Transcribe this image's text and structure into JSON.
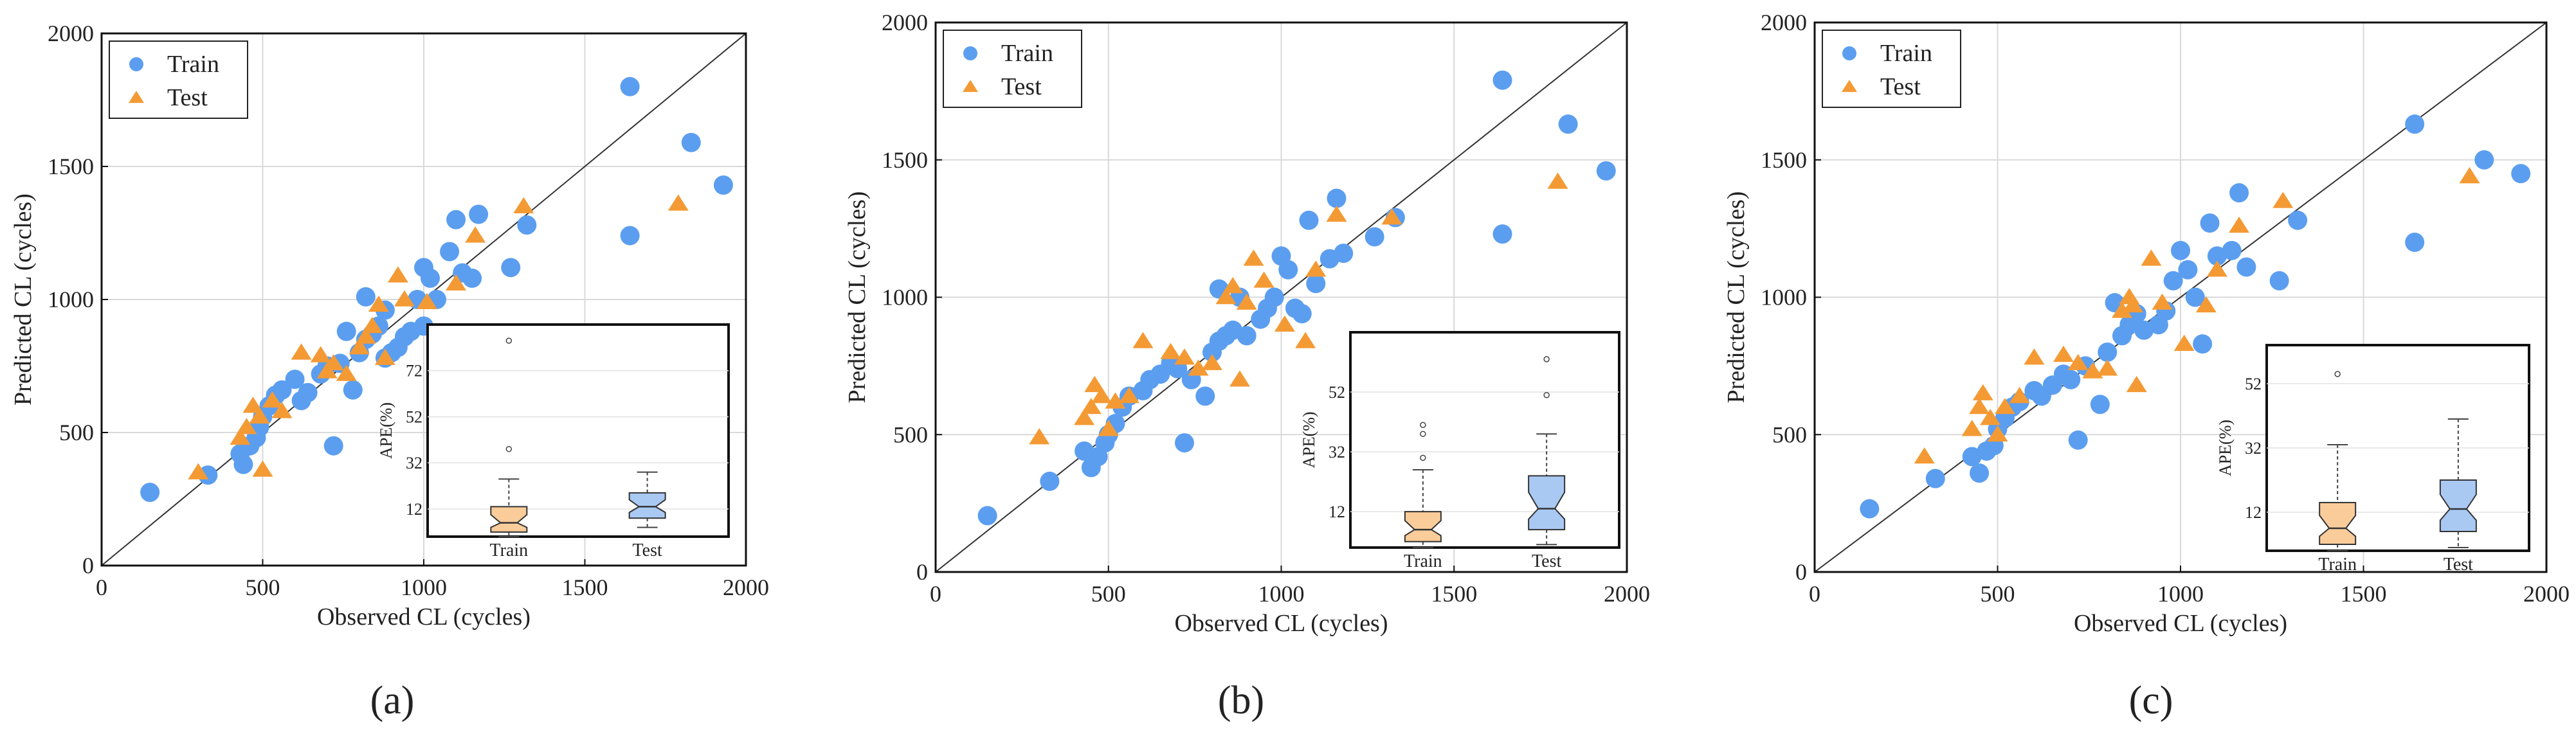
{
  "colors": {
    "train": "#5B9EF0",
    "test": "#F49A34",
    "box_train": "#F9CC9A",
    "box_test": "#A9C9F3"
  },
  "chart_data": [
    {
      "type": "scatter",
      "panel_label": "(a)",
      "xlabel": "Observed CL (cycles)",
      "ylabel": "Predicted CL (cycles)",
      "xlim": [
        0,
        2000
      ],
      "ylim": [
        0,
        2000
      ],
      "xticks": [
        "0",
        "500",
        "1000",
        "1500",
        "2000"
      ],
      "yticks": [
        "0",
        "500",
        "1000",
        "1500",
        "2000"
      ],
      "grid": true,
      "legend": "top-left",
      "series": [
        {
          "name": "Train",
          "marker": "circle",
          "points": [
            [
              150,
              275
            ],
            [
              330,
              340
            ],
            [
              430,
              420
            ],
            [
              440,
              380
            ],
            [
              460,
              450
            ],
            [
              480,
              480
            ],
            [
              490,
              520
            ],
            [
              500,
              560
            ],
            [
              520,
              600
            ],
            [
              540,
              640
            ],
            [
              560,
              660
            ],
            [
              600,
              700
            ],
            [
              620,
              620
            ],
            [
              640,
              650
            ],
            [
              680,
              720
            ],
            [
              700,
              750
            ],
            [
              720,
              450
            ],
            [
              740,
              760
            ],
            [
              780,
              660
            ],
            [
              800,
              800
            ],
            [
              820,
              850
            ],
            [
              840,
              870
            ],
            [
              860,
              900
            ],
            [
              880,
              960
            ],
            [
              900,
              800
            ],
            [
              920,
              820
            ],
            [
              940,
              860
            ],
            [
              960,
              880
            ],
            [
              980,
              1000
            ],
            [
              1000,
              1120
            ],
            [
              1020,
              1080
            ],
            [
              1040,
              1000
            ],
            [
              1060,
              850
            ],
            [
              1080,
              1180
            ],
            [
              1100,
              1300
            ],
            [
              1120,
              1100
            ],
            [
              1150,
              1080
            ],
            [
              1170,
              1320
            ],
            [
              1270,
              1120
            ],
            [
              1320,
              1280
            ],
            [
              1640,
              1240
            ],
            [
              1640,
              1800
            ],
            [
              1830,
              1590
            ],
            [
              1930,
              1430
            ],
            [
              820,
              1010
            ],
            [
              760,
              880
            ],
            [
              880,
              780
            ],
            [
              1000,
              900
            ]
          ]
        },
        {
          "name": "Test",
          "marker": "triangle",
          "points": [
            [
              300,
              350
            ],
            [
              430,
              480
            ],
            [
              450,
              520
            ],
            [
              470,
              600
            ],
            [
              490,
              560
            ],
            [
              500,
              360
            ],
            [
              530,
              620
            ],
            [
              560,
              580
            ],
            [
              620,
              800
            ],
            [
              680,
              790
            ],
            [
              720,
              760
            ],
            [
              760,
              720
            ],
            [
              800,
              820
            ],
            [
              840,
              900
            ],
            [
              860,
              980
            ],
            [
              880,
              780
            ],
            [
              920,
              1090
            ],
            [
              940,
              1000
            ],
            [
              1010,
              990
            ],
            [
              1060,
              860
            ],
            [
              1100,
              1060
            ],
            [
              1160,
              1240
            ],
            [
              1310,
              1350
            ],
            [
              1790,
              1360
            ],
            [
              700,
              730
            ],
            [
              820,
              860
            ]
          ]
        }
      ],
      "inset": {
        "type": "box",
        "ylabel": "APE(%)",
        "yticks": [
          "12",
          "32",
          "52",
          "72"
        ],
        "ylim": [
          0,
          92
        ],
        "boxes": [
          {
            "name": "Train",
            "q1": 2,
            "median": 6,
            "q3": 13,
            "whisker_low": 0,
            "whisker_high": 25,
            "outliers": [
              38,
              85
            ]
          },
          {
            "name": "Test",
            "q1": 8,
            "median": 13,
            "q3": 19,
            "whisker_low": 4,
            "whisker_high": 28,
            "outliers": []
          }
        ]
      }
    },
    {
      "type": "scatter",
      "panel_label": "(b)",
      "xlabel": "Observed CL (cycles)",
      "ylabel": "Predicted CL (cycles)",
      "xlim": [
        0,
        2000
      ],
      "ylim": [
        0,
        2000
      ],
      "xticks": [
        "0",
        "500",
        "1000",
        "1500",
        "2000"
      ],
      "yticks": [
        "0",
        "500",
        "1000",
        "1500",
        "2000"
      ],
      "grid": true,
      "legend": "top-left",
      "series": [
        {
          "name": "Train",
          "marker": "circle",
          "points": [
            [
              150,
              205
            ],
            [
              330,
              330
            ],
            [
              430,
              440
            ],
            [
              450,
              380
            ],
            [
              470,
              420
            ],
            [
              490,
              470
            ],
            [
              500,
              500
            ],
            [
              520,
              540
            ],
            [
              540,
              600
            ],
            [
              560,
              640
            ],
            [
              600,
              660
            ],
            [
              620,
              700
            ],
            [
              650,
              720
            ],
            [
              680,
              760
            ],
            [
              700,
              740
            ],
            [
              720,
              470
            ],
            [
              740,
              700
            ],
            [
              780,
              640
            ],
            [
              800,
              800
            ],
            [
              820,
              840
            ],
            [
              840,
              860
            ],
            [
              860,
              880
            ],
            [
              880,
              1000
            ],
            [
              900,
              860
            ],
            [
              940,
              920
            ],
            [
              960,
              960
            ],
            [
              980,
              1000
            ],
            [
              1000,
              1150
            ],
            [
              1020,
              1100
            ],
            [
              1040,
              960
            ],
            [
              1060,
              940
            ],
            [
              1080,
              1280
            ],
            [
              1100,
              1050
            ],
            [
              1140,
              1140
            ],
            [
              1160,
              1360
            ],
            [
              1180,
              1160
            ],
            [
              1270,
              1220
            ],
            [
              1330,
              1290
            ],
            [
              1640,
              1230
            ],
            [
              1640,
              1790
            ],
            [
              1830,
              1630
            ],
            [
              1940,
              1460
            ],
            [
              820,
              1030
            ]
          ]
        },
        {
          "name": "Test",
          "marker": "triangle",
          "points": [
            [
              300,
              490
            ],
            [
              430,
              560
            ],
            [
              450,
              600
            ],
            [
              460,
              680
            ],
            [
              480,
              640
            ],
            [
              500,
              520
            ],
            [
              520,
              620
            ],
            [
              560,
              640
            ],
            [
              600,
              840
            ],
            [
              680,
              800
            ],
            [
              720,
              780
            ],
            [
              760,
              740
            ],
            [
              800,
              760
            ],
            [
              840,
              1000
            ],
            [
              860,
              1040
            ],
            [
              880,
              700
            ],
            [
              920,
              1140
            ],
            [
              950,
              1060
            ],
            [
              1010,
              900
            ],
            [
              1070,
              840
            ],
            [
              1100,
              1100
            ],
            [
              1160,
              1300
            ],
            [
              1320,
              1290
            ],
            [
              1800,
              1420
            ],
            [
              900,
              980
            ]
          ]
        }
      ],
      "inset": {
        "type": "box",
        "ylabel": "APE(%)",
        "yticks": [
          "12",
          "32",
          "52"
        ],
        "ylim": [
          0,
          72
        ],
        "boxes": [
          {
            "name": "Train",
            "q1": 2,
            "median": 6,
            "q3": 12,
            "whisker_low": 0,
            "whisker_high": 26,
            "outliers": [
              30,
              38,
              41
            ]
          },
          {
            "name": "Test",
            "q1": 6,
            "median": 13,
            "q3": 24,
            "whisker_low": 1,
            "whisker_high": 38,
            "outliers": [
              51,
              63
            ]
          }
        ]
      }
    },
    {
      "type": "scatter",
      "panel_label": "(c)",
      "xlabel": "Observed CL (cycles)",
      "ylabel": "Predicted CL (cycles)",
      "xlim": [
        0,
        2000
      ],
      "ylim": [
        0,
        2000
      ],
      "xticks": [
        "0",
        "500",
        "1000",
        "1500",
        "2000"
      ],
      "yticks": [
        "0",
        "500",
        "1000",
        "1500",
        "2000"
      ],
      "grid": true,
      "legend": "top-left",
      "series": [
        {
          "name": "Train",
          "marker": "circle",
          "points": [
            [
              150,
              230
            ],
            [
              330,
              340
            ],
            [
              430,
              420
            ],
            [
              450,
              360
            ],
            [
              470,
              440
            ],
            [
              490,
              460
            ],
            [
              500,
              520
            ],
            [
              520,
              560
            ],
            [
              540,
              600
            ],
            [
              560,
              620
            ],
            [
              600,
              660
            ],
            [
              620,
              640
            ],
            [
              650,
              680
            ],
            [
              680,
              720
            ],
            [
              700,
              700
            ],
            [
              720,
              480
            ],
            [
              740,
              750
            ],
            [
              780,
              610
            ],
            [
              800,
              800
            ],
            [
              820,
              980
            ],
            [
              840,
              860
            ],
            [
              860,
              900
            ],
            [
              880,
              940
            ],
            [
              900,
              880
            ],
            [
              940,
              900
            ],
            [
              960,
              950
            ],
            [
              980,
              1060
            ],
            [
              1000,
              1170
            ],
            [
              1020,
              1100
            ],
            [
              1040,
              1000
            ],
            [
              1060,
              830
            ],
            [
              1080,
              1270
            ],
            [
              1100,
              1150
            ],
            [
              1140,
              1170
            ],
            [
              1160,
              1380
            ],
            [
              1180,
              1110
            ],
            [
              1270,
              1060
            ],
            [
              1320,
              1280
            ],
            [
              1640,
              1200
            ],
            [
              1640,
              1630
            ],
            [
              1830,
              1500
            ],
            [
              1930,
              1450
            ]
          ]
        },
        {
          "name": "Test",
          "marker": "triangle",
          "points": [
            [
              300,
              420
            ],
            [
              430,
              520
            ],
            [
              450,
              600
            ],
            [
              460,
              650
            ],
            [
              480,
              560
            ],
            [
              500,
              500
            ],
            [
              520,
              600
            ],
            [
              560,
              640
            ],
            [
              600,
              780
            ],
            [
              680,
              790
            ],
            [
              720,
              760
            ],
            [
              760,
              730
            ],
            [
              800,
              740
            ],
            [
              840,
              950
            ],
            [
              860,
              1000
            ],
            [
              880,
              680
            ],
            [
              920,
              1140
            ],
            [
              950,
              980
            ],
            [
              1010,
              830
            ],
            [
              1070,
              970
            ],
            [
              1100,
              1100
            ],
            [
              1160,
              1260
            ],
            [
              1280,
              1350
            ],
            [
              1790,
              1440
            ],
            [
              870,
              970
            ]
          ]
        }
      ],
      "inset": {
        "type": "box",
        "ylabel": "APE(%)",
        "yticks": [
          "12",
          "32",
          "52"
        ],
        "ylim": [
          0,
          64
        ],
        "boxes": [
          {
            "name": "Train",
            "q1": 2,
            "median": 7,
            "q3": 15,
            "whisker_low": 0,
            "whisker_high": 33,
            "outliers": [
              55
            ]
          },
          {
            "name": "Test",
            "q1": 6,
            "median": 13,
            "q3": 22,
            "whisker_low": 1,
            "whisker_high": 41,
            "outliers": []
          }
        ]
      }
    }
  ]
}
